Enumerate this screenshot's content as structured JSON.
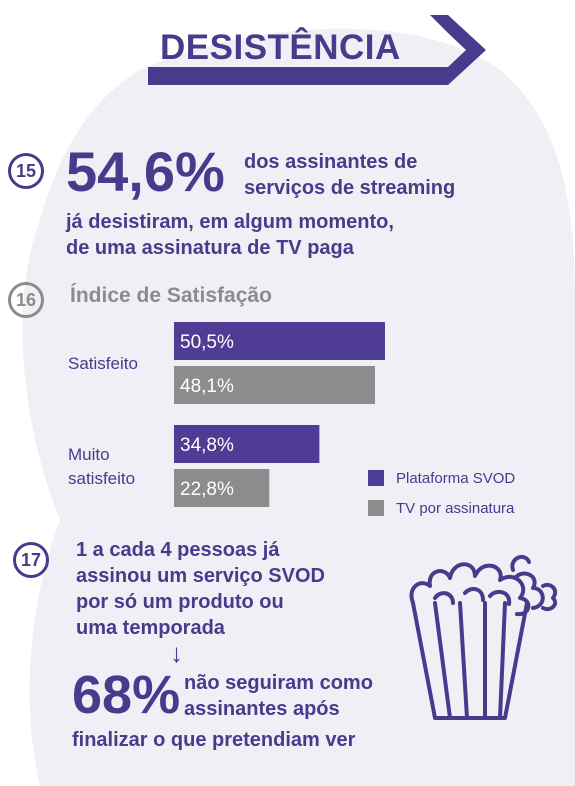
{
  "title": "DESISTÊNCIA",
  "colors": {
    "primary": "#4a3a8c",
    "bar_svod": "#4f3d95",
    "bar_tv": "#8c8c8c",
    "background_blob": "#f0eff6"
  },
  "section15": {
    "number": "15",
    "big_value": "54,6%",
    "text_line1": "dos assinantes de",
    "text_line2": "serviços de streaming",
    "text_line3": "já desistiram, em algum momento,",
    "text_line4": "de uma assinatura de TV paga"
  },
  "section16": {
    "number": "16",
    "heading": "Índice de Satisfação"
  },
  "chart_data": {
    "type": "bar",
    "orientation": "horizontal",
    "title": "Índice de Satisfação",
    "categories": [
      "Satisfeito",
      "Muito satisfeito"
    ],
    "series": [
      {
        "name": "Plataforma SVOD",
        "values": [
          50.5,
          34.8
        ],
        "labels": [
          "50,5%",
          "34,8%"
        ],
        "color": "#4f3d95"
      },
      {
        "name": "TV por assinatura",
        "values": [
          48.1,
          22.8
        ],
        "labels": [
          "48,1%",
          "22,8%"
        ],
        "color": "#8c8c8c"
      }
    ],
    "legend_position": "right",
    "grid": false
  },
  "section17": {
    "number": "17",
    "text_line1": "1 a cada 4 pessoas já",
    "text_line2": "assinou um serviço SVOD",
    "text_line3": "por só um produto ou",
    "text_line4": "uma temporada",
    "arrow": "↓",
    "big_value": "68%",
    "follow_line1": "não seguiram como",
    "follow_line2": "assinantes após",
    "follow_line3": "finalizar o que pretendiam ver"
  },
  "icons": {
    "popcorn": "popcorn-icon"
  }
}
